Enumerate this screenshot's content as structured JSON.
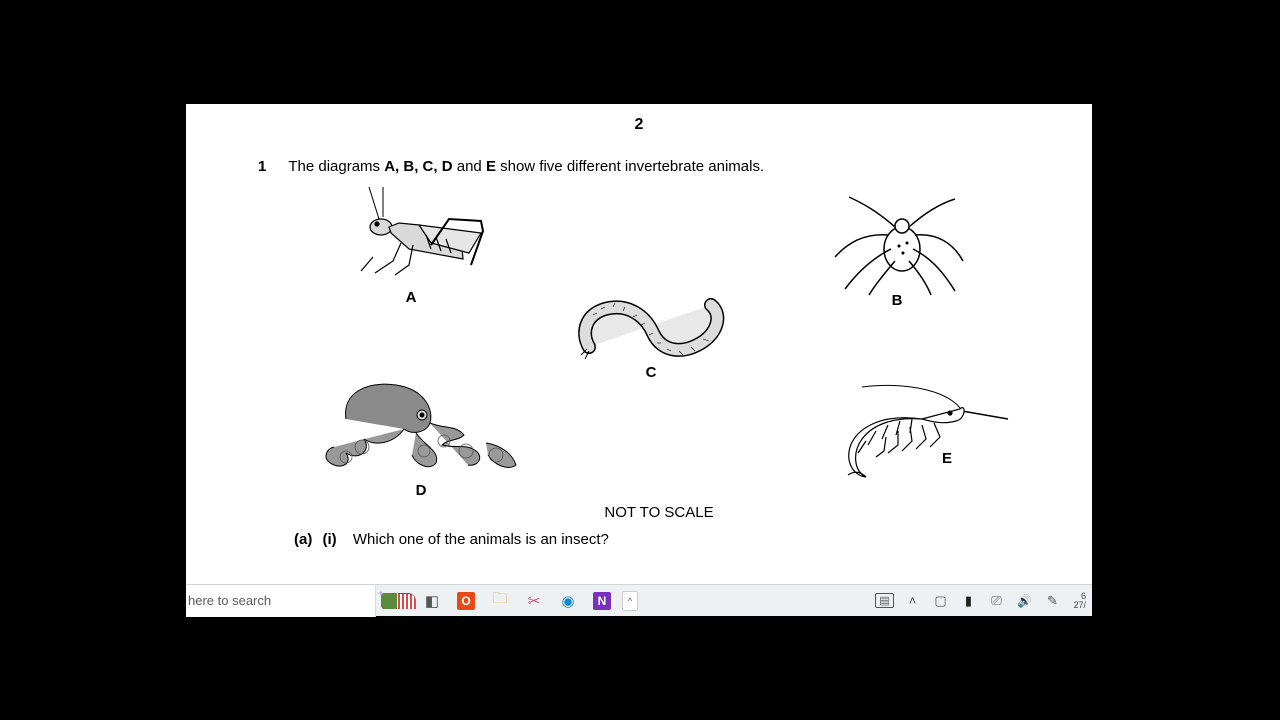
{
  "page_number": "2",
  "question": {
    "number": "1",
    "text_prefix": "The diagrams ",
    "bold_letters": "A, B, C, D",
    "text_mid": " and ",
    "bold_last": "E",
    "text_suffix": " show five different invertebrate animals."
  },
  "animals": {
    "A": {
      "label": "A",
      "kind": "grasshopper"
    },
    "B": {
      "label": "B",
      "kind": "spider"
    },
    "C": {
      "label": "C",
      "kind": "millipede"
    },
    "D": {
      "label": "D",
      "kind": "octopus"
    },
    "E": {
      "label": "E",
      "kind": "shrimp"
    }
  },
  "scale_note": "NOT TO SCALE",
  "sub_question": {
    "part": "(a)",
    "subpart": "(i)",
    "text": "Which one of the animals is an insect?"
  },
  "taskbar": {
    "search_placeholder": "here to search",
    "apps": [
      {
        "name": "news-widget",
        "kind": "news"
      },
      {
        "name": "task-view",
        "glyph": "◧",
        "color": "#555"
      },
      {
        "name": "office",
        "glyph": "O",
        "bg": "#e64a19",
        "color": "#fff",
        "bold": true
      },
      {
        "name": "file-explorer",
        "glyph": "🗀",
        "color": "#dba934"
      },
      {
        "name": "snip",
        "glyph": "✂",
        "color": "#d94a7a"
      },
      {
        "name": "edge",
        "glyph": "◉",
        "color": "#0e8ad6"
      },
      {
        "name": "onenote",
        "glyph": "N",
        "bg": "#7b2fbf",
        "color": "#fff",
        "bold": true
      }
    ],
    "chevron_up": "^",
    "tray": [
      {
        "name": "news-tray",
        "glyph": "▭",
        "color": "#555",
        "border": true
      },
      {
        "name": "expand-tray",
        "glyph": "˄",
        "color": "#555"
      },
      {
        "name": "battery",
        "glyph": "▢",
        "color": "#555"
      },
      {
        "name": "mic",
        "glyph": "▮",
        "color": "#222"
      },
      {
        "name": "network",
        "glyph": "⎚",
        "color": "#555"
      },
      {
        "name": "volume",
        "glyph": "🔊",
        "color": "#555",
        "size": 12
      },
      {
        "name": "pen",
        "glyph": "✎",
        "color": "#555"
      }
    ],
    "date_partial_top": "6",
    "date_partial_bottom": "27/"
  },
  "colors": {
    "page_bg": "#ffffff",
    "frame_bg": "#000000",
    "taskbar_bg": "#eef1f4"
  }
}
